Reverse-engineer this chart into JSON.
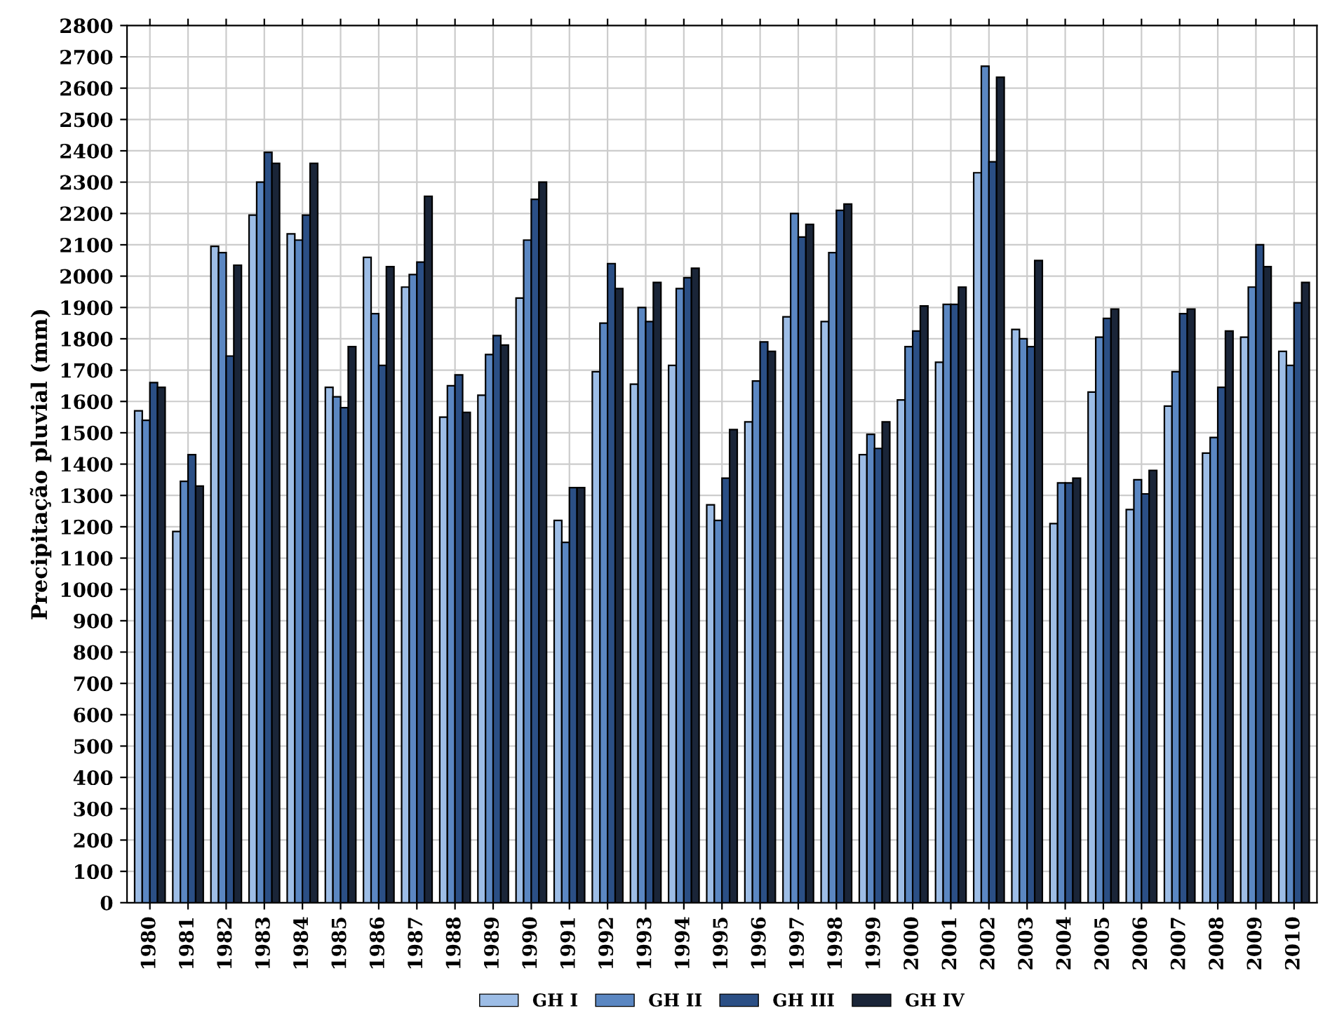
{
  "chart_data": {
    "type": "bar",
    "ylabel": "Precipitação pluvial (mm)",
    "categories": [
      "1980",
      "1981",
      "1982",
      "1983",
      "1984",
      "1985",
      "1986",
      "1987",
      "1988",
      "1989",
      "1990",
      "1991",
      "1992",
      "1993",
      "1994",
      "1995",
      "1996",
      "1997",
      "1998",
      "1999",
      "2000",
      "2001",
      "2002",
      "2003",
      "2004",
      "2005",
      "2006",
      "2007",
      "2008",
      "2009",
      "2010"
    ],
    "series": [
      {
        "name": "GH I",
        "color": "#9dbde6",
        "values": [
          1570,
          1185,
          2095,
          2195,
          2135,
          1645,
          2060,
          1965,
          1550,
          1620,
          1930,
          1220,
          1695,
          1655,
          1715,
          1270,
          1535,
          1870,
          1855,
          1430,
          1605,
          1725,
          2330,
          1830,
          1210,
          1630,
          1255,
          1585,
          1435,
          1805,
          1760
        ]
      },
      {
        "name": "GH II",
        "color": "#5b87c2",
        "values": [
          1540,
          1345,
          2075,
          2300,
          2115,
          1615,
          1880,
          2005,
          1650,
          1750,
          2115,
          1150,
          1850,
          1900,
          1960,
          1220,
          1665,
          2200,
          2075,
          1495,
          1775,
          1910,
          2670,
          1800,
          1340,
          1805,
          1350,
          1695,
          1485,
          1965,
          1715
        ]
      },
      {
        "name": "GH III",
        "color": "#2b4f85",
        "values": [
          1660,
          1430,
          1745,
          2395,
          2195,
          1580,
          1715,
          2045,
          1685,
          1810,
          2245,
          1325,
          2040,
          1855,
          1995,
          1355,
          1790,
          2125,
          2210,
          1450,
          1825,
          1910,
          2365,
          1775,
          1340,
          1865,
          1305,
          1880,
          1645,
          2100,
          1915
        ]
      },
      {
        "name": "GH IV",
        "color": "#1a2538",
        "values": [
          1645,
          1330,
          2035,
          2360,
          2360,
          1775,
          2030,
          2255,
          1565,
          1780,
          2300,
          1325,
          1960,
          1980,
          2025,
          1510,
          1760,
          2165,
          2230,
          1535,
          1905,
          1965,
          2635,
          2050,
          1355,
          1895,
          1380,
          1895,
          1825,
          2030,
          1980
        ]
      }
    ],
    "ylim": [
      0,
      2800
    ],
    "yticks": [
      0,
      100,
      200,
      300,
      400,
      500,
      600,
      700,
      800,
      900,
      1000,
      1100,
      1200,
      1300,
      1400,
      1500,
      1600,
      1700,
      1800,
      1900,
      2000,
      2100,
      2200,
      2300,
      2400,
      2500,
      2600,
      2700,
      2800
    ],
    "grid": true,
    "legend": "bottom"
  }
}
